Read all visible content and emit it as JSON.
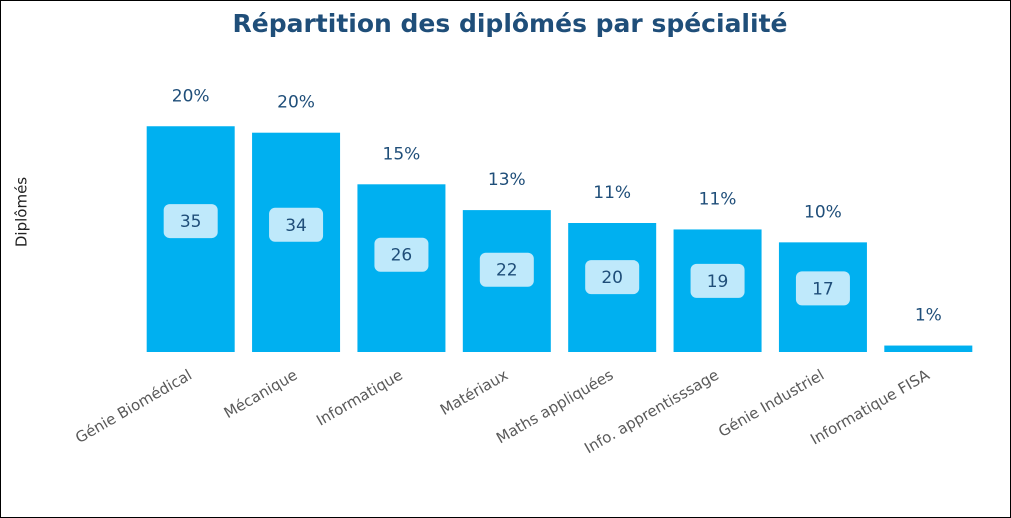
{
  "chart_data": {
    "type": "bar",
    "title": "Répartition des diplômés par spécialité",
    "y_label": "Diplômés",
    "categories": [
      "Génie Biomédical",
      "Mécanique",
      "Informatique",
      "Matériaux",
      "Maths appliquées",
      "Info. apprentisssage",
      "Génie Industriel",
      "Informatique FISA"
    ],
    "values": [
      35,
      34,
      26,
      22,
      20,
      19,
      17,
      1
    ],
    "percent_labels": [
      "20%",
      "20%",
      "15%",
      "13%",
      "11%",
      "11%",
      "10%",
      "1%"
    ],
    "color": "#00b0f0",
    "ylim": [
      0,
      40
    ]
  }
}
